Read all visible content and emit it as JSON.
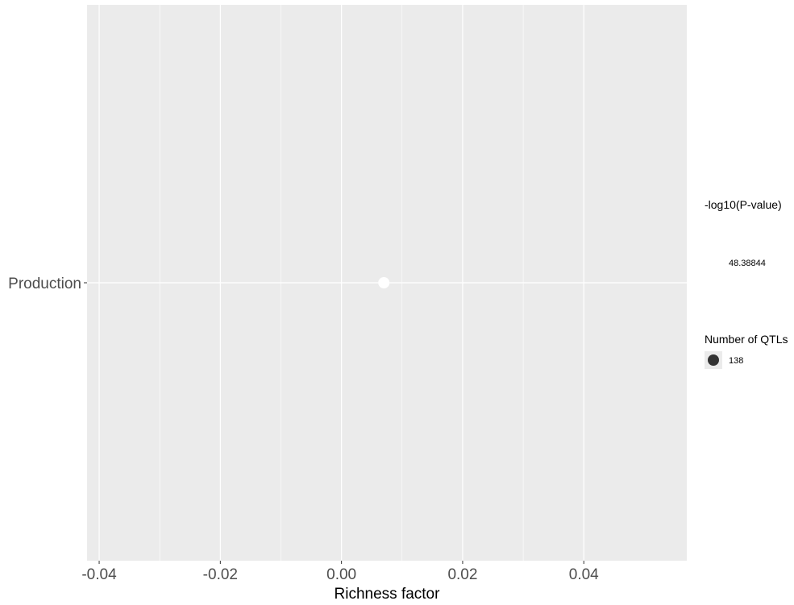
{
  "chart_data": {
    "type": "scatter",
    "xlabel": "Richness factor",
    "ylabel": "",
    "xlim": [
      -0.042,
      0.057
    ],
    "x_ticks": [
      -0.04,
      -0.02,
      0.0,
      0.02,
      0.04
    ],
    "x_tick_labels": [
      "-0.04",
      "-0.02",
      "0.00",
      "0.02",
      "0.04"
    ],
    "categories": [
      "Production"
    ],
    "points": [
      {
        "category": "Production",
        "x": 0.007,
        "neg_log10_p": 48.38844,
        "qtl_count": 138
      }
    ],
    "grid": true,
    "panel_background": "#ebebeb",
    "grid_color": "#ffffff",
    "point_color": "#ffffff",
    "legend": {
      "placement": "right",
      "color_title": "-log10(P-value)",
      "color_label": "48.38844",
      "size_title": "Number of QTLs",
      "size_label": "138",
      "size_key_color": "#333333"
    }
  }
}
